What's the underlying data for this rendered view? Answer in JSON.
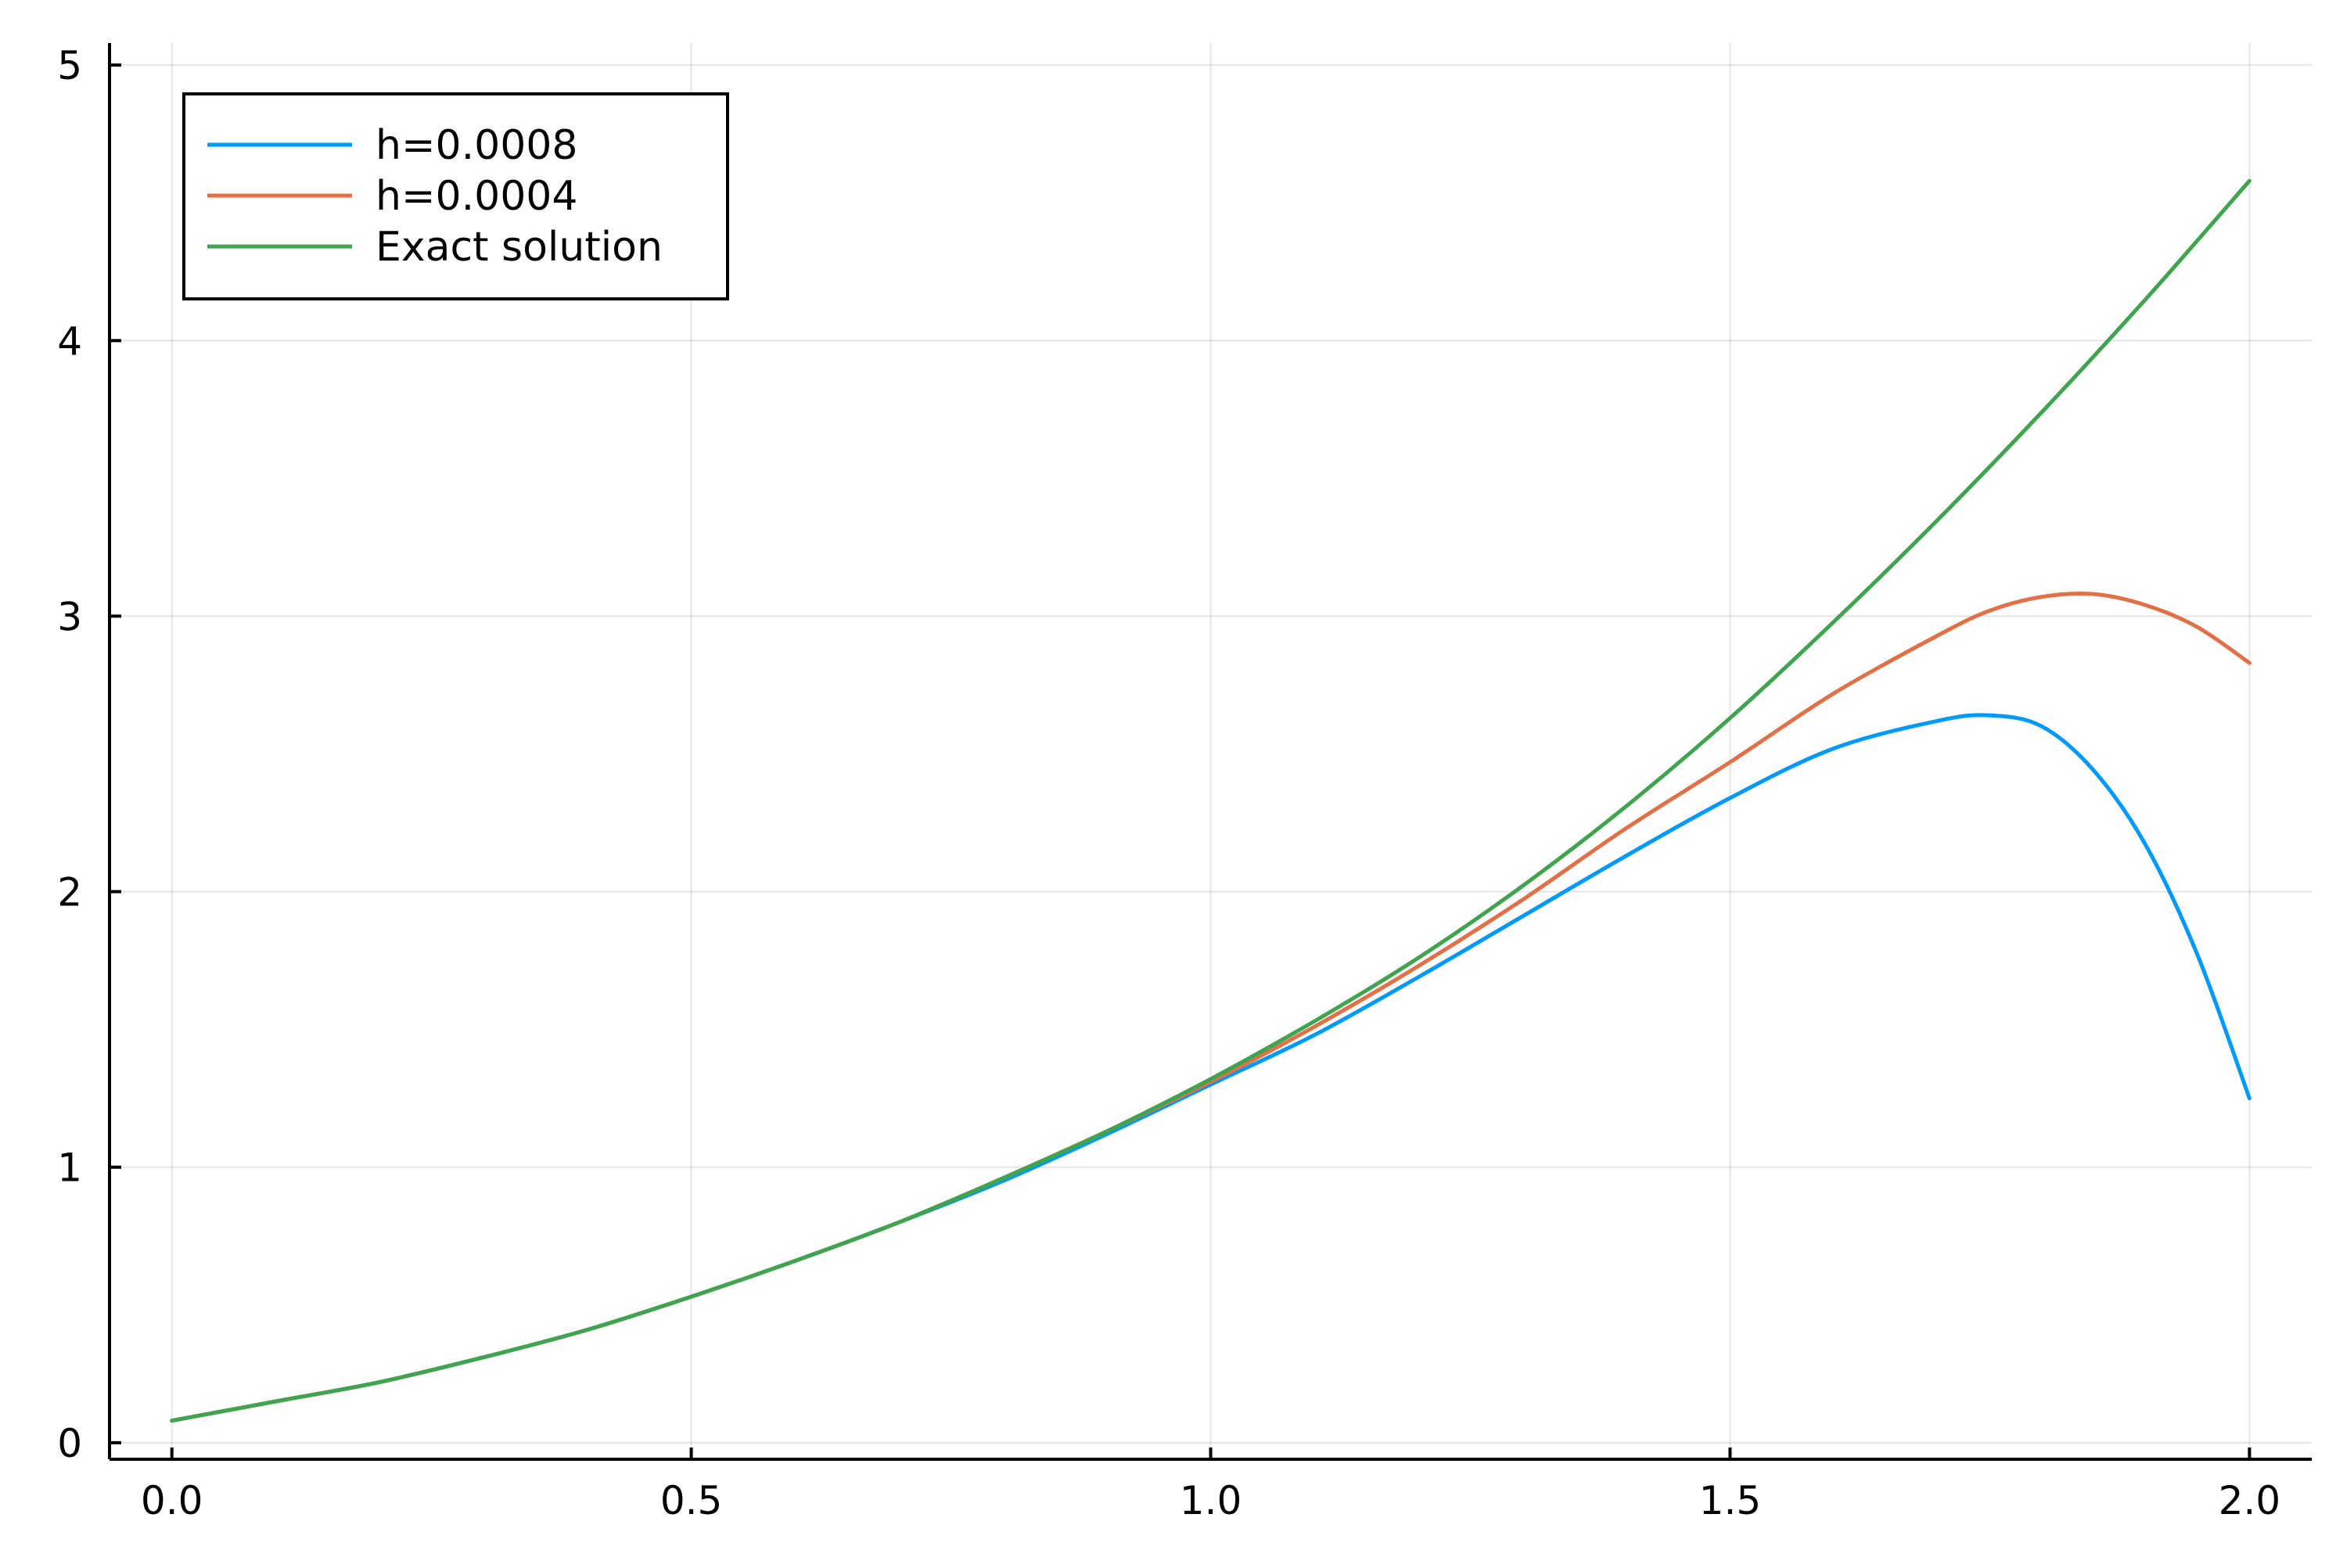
{
  "chart_data": {
    "type": "line",
    "title": "",
    "xlabel": "",
    "ylabel": "",
    "xlim": [
      -0.06,
      2.06
    ],
    "ylim": [
      -0.06,
      5.08
    ],
    "xticks": [
      0.0,
      0.5,
      1.0,
      1.5,
      2.0
    ],
    "xtick_labels": [
      "0.0",
      "0.5",
      "1.0",
      "1.5",
      "2.0"
    ],
    "yticks": [
      0,
      1,
      2,
      3,
      4,
      5
    ],
    "ytick_labels": [
      "0",
      "1",
      "2",
      "3",
      "4",
      "5"
    ],
    "grid": true,
    "legend_position": "top-left",
    "series": [
      {
        "name": "h=0.0008",
        "color": "#009AFA",
        "x": [
          0.0,
          0.1,
          0.2,
          0.3,
          0.4,
          0.5,
          0.6,
          0.7,
          0.8,
          0.9,
          1.0,
          1.1,
          1.2,
          1.3,
          1.4,
          1.5,
          1.6,
          1.7,
          1.75,
          1.8,
          1.85,
          1.9,
          1.95,
          2.0
        ],
        "y": [
          0.08,
          0.15,
          0.22,
          0.31,
          0.41,
          0.53,
          0.66,
          0.8,
          0.95,
          1.12,
          1.3,
          1.48,
          1.69,
          1.91,
          2.13,
          2.34,
          2.52,
          2.62,
          2.64,
          2.6,
          2.44,
          2.17,
          1.77,
          1.25
        ]
      },
      {
        "name": "h=0.0004",
        "color": "#E36F47",
        "x": [
          0.0,
          0.1,
          0.2,
          0.3,
          0.4,
          0.5,
          0.6,
          0.7,
          0.8,
          0.9,
          1.0,
          1.1,
          1.2,
          1.3,
          1.4,
          1.5,
          1.6,
          1.7,
          1.75,
          1.8,
          1.85,
          1.9,
          1.95,
          2.0
        ],
        "y": [
          0.08,
          0.15,
          0.22,
          0.31,
          0.41,
          0.53,
          0.66,
          0.8,
          0.96,
          1.13,
          1.31,
          1.51,
          1.73,
          1.97,
          2.23,
          2.47,
          2.72,
          2.93,
          3.02,
          3.07,
          3.08,
          3.04,
          2.96,
          2.83
        ]
      },
      {
        "name": "Exact solution",
        "color": "#3EA44E",
        "x": [
          0.0,
          0.1,
          0.2,
          0.3,
          0.4,
          0.5,
          0.6,
          0.7,
          0.8,
          0.9,
          1.0,
          1.1,
          1.2,
          1.3,
          1.4,
          1.5,
          1.6,
          1.7,
          1.8,
          1.9,
          2.0
        ],
        "y": [
          0.08,
          0.15,
          0.22,
          0.31,
          0.41,
          0.53,
          0.66,
          0.8,
          0.96,
          1.13,
          1.32,
          1.53,
          1.76,
          2.02,
          2.31,
          2.63,
          2.98,
          3.35,
          3.74,
          4.15,
          4.58
        ]
      }
    ]
  }
}
